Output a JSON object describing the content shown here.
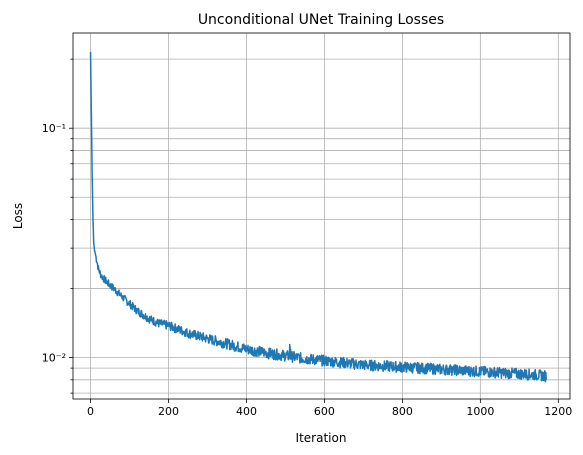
{
  "chart_data": {
    "type": "line",
    "title": "Unconditional UNet Training Losses",
    "xlabel": "Iteration",
    "ylabel": "Loss",
    "xlim": [
      -45,
      1230
    ],
    "ylim": [
      0.0066,
      0.26
    ],
    "yscale": "log",
    "grid": "both",
    "x_ticks": [
      0,
      200,
      400,
      600,
      800,
      1000,
      1200
    ],
    "x_tick_labels": [
      "0",
      "200",
      "400",
      "600",
      "800",
      "1000",
      "1200"
    ],
    "y_major_ticks": [
      0.01,
      0.1
    ],
    "y_major_tick_labels": [
      "10⁻²",
      "10⁻¹"
    ],
    "y_minor_ticks": [
      0.007,
      0.008,
      0.009,
      0.02,
      0.03,
      0.04,
      0.05,
      0.06,
      0.07,
      0.08,
      0.09,
      0.2
    ],
    "series": [
      {
        "color": "#1f77b4",
        "x": [
          0,
          2,
          4,
          6,
          8,
          10,
          12,
          15,
          20,
          25,
          30,
          40,
          50,
          60,
          80,
          100,
          120,
          150,
          175,
          200,
          250,
          300,
          350,
          400,
          450,
          500,
          550,
          600,
          650,
          700,
          750,
          800,
          850,
          900,
          950,
          1000,
          1050,
          1100,
          1150,
          1170
        ],
        "y": [
          0.215,
          0.12,
          0.065,
          0.042,
          0.032,
          0.0295,
          0.0285,
          0.027,
          0.0245,
          0.0232,
          0.0225,
          0.0215,
          0.0207,
          0.02,
          0.0185,
          0.0172,
          0.016,
          0.0148,
          0.0141,
          0.0138,
          0.0128,
          0.0121,
          0.0115,
          0.0109,
          0.0105,
          0.0102,
          0.0099,
          0.0097,
          0.0095,
          0.0093,
          0.0092,
          0.0091,
          0.009,
          0.0089,
          0.0088,
          0.0087,
          0.0086,
          0.0085,
          0.0084,
          0.0083
        ]
      }
    ]
  }
}
